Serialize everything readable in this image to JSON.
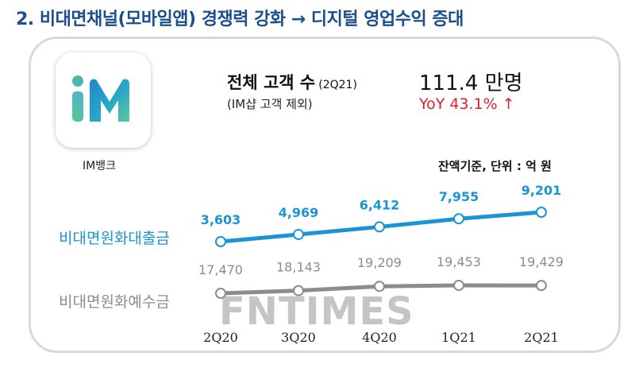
{
  "headline": "2. 비대면채널(모바일앱) 경쟁력 강화 → 디지털 영업수익 증대",
  "app": {
    "name": "IM뱅크",
    "icon_text": "iM"
  },
  "kpi": {
    "label": "전체 고객 수",
    "period": "(2Q21)",
    "note": "(IM샵 고객 제외)",
    "value": "111.4 만명",
    "growth": "YoY 43.1% ↑"
  },
  "unit_note": "잔액기준, 단위 : 억 원",
  "watermark": "FNTIMES",
  "colors": {
    "headline": "#1b4f8c",
    "loan": "#1a94d2",
    "deposit": "#8c8c8c",
    "growth": "#d9232a"
  },
  "chart_data": {
    "type": "line",
    "categories": [
      "2Q20",
      "3Q20",
      "4Q20",
      "1Q21",
      "2Q21"
    ],
    "series": [
      {
        "name": "비대면원화대출금",
        "values": [
          3603,
          4969,
          6412,
          7955,
          9201
        ],
        "labels": [
          "3,603",
          "4,969",
          "6,412",
          "7,955",
          "9,201"
        ]
      },
      {
        "name": "비대면원화예수금",
        "values": [
          17470,
          18143,
          19209,
          19453,
          19429
        ],
        "labels": [
          "17,470",
          "18,143",
          "19,209",
          "19,453",
          "19,429"
        ]
      }
    ],
    "grid": false,
    "legend": "left of lines"
  }
}
